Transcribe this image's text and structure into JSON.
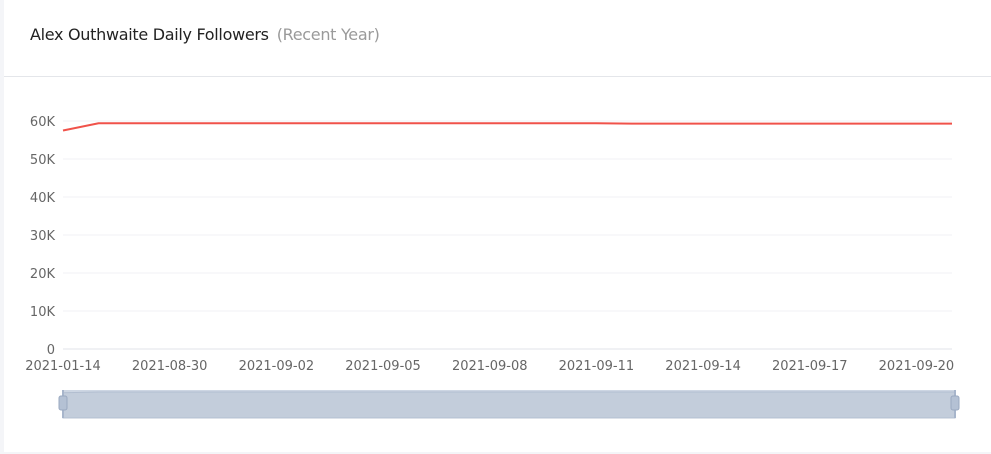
{
  "header": {
    "title": "Alex Outhwaite Daily Followers",
    "subtitle": "(Recent Year)"
  },
  "chart_data": {
    "type": "line",
    "title": "Alex Outhwaite Daily Followers",
    "subtitle": "(Recent Year)",
    "xlabel": "",
    "ylabel": "",
    "ylim": [
      0,
      60000
    ],
    "y_ticks": [
      "0",
      "10K",
      "20K",
      "30K",
      "40K",
      "50K",
      "60K"
    ],
    "x_tick_labels": [
      "2021-01-14",
      "2021-08-30",
      "2021-09-02",
      "2021-09-05",
      "2021-09-08",
      "2021-09-11",
      "2021-09-14",
      "2021-09-17",
      "2021-09-20"
    ],
    "grid": true,
    "legend": "none",
    "color": "#f0524a",
    "x": [
      "2021-01-14",
      "2021-08-28",
      "2021-08-29",
      "2021-08-30",
      "2021-08-31",
      "2021-09-01",
      "2021-09-02",
      "2021-09-03",
      "2021-09-04",
      "2021-09-05",
      "2021-09-06",
      "2021-09-07",
      "2021-09-08",
      "2021-09-09",
      "2021-09-10",
      "2021-09-11",
      "2021-09-12",
      "2021-09-13",
      "2021-09-14",
      "2021-09-15",
      "2021-09-16",
      "2021-09-17",
      "2021-09-18",
      "2021-09-19",
      "2021-09-20",
      "2021-09-21"
    ],
    "values": [
      57500,
      59400,
      59400,
      59400,
      59400,
      59400,
      59400,
      59400,
      59400,
      59400,
      59400,
      59400,
      59400,
      59400,
      59400,
      59400,
      59300,
      59300,
      59300,
      59300,
      59300,
      59300,
      59300,
      59300,
      59300,
      59300
    ],
    "data_zoom": {
      "start_percent": 0,
      "end_percent": 100
    }
  }
}
